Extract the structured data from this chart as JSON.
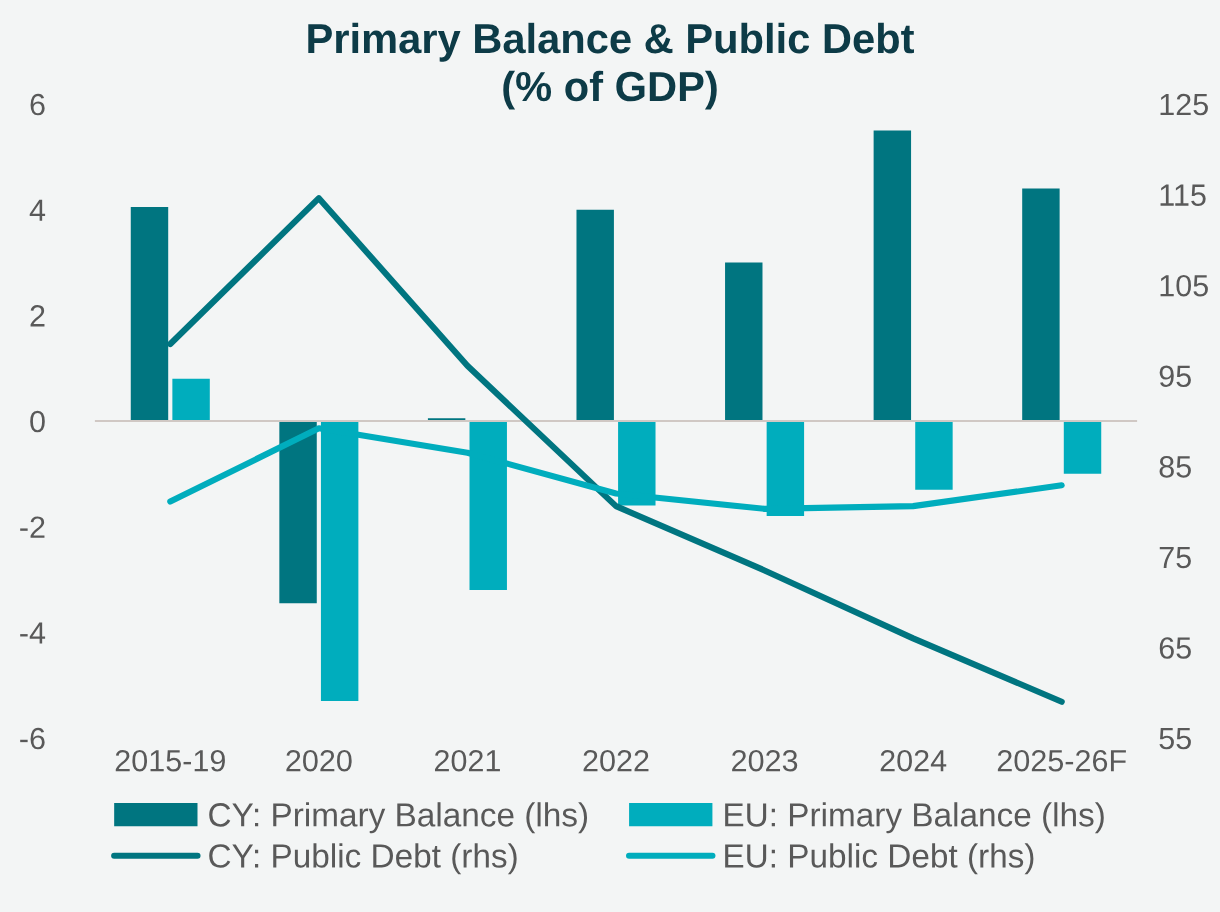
{
  "chart_data": {
    "type": "bar",
    "title": "Primary Balance & Public Debt\n(% of GDP)",
    "categories": [
      "2015-19",
      "2020",
      "2021",
      "2022",
      "2023",
      "2024",
      "2025-26F"
    ],
    "series": [
      {
        "name": "CY: Primary Balance (lhs)",
        "color": "#007580",
        "values": [
          4.05,
          -3.45,
          0.05,
          4.0,
          3.0,
          5.5,
          4.4
        ]
      },
      {
        "name": "EU: Primary Balance (lhs)",
        "color": "#00adbd",
        "values": [
          0.8,
          -5.3,
          -3.2,
          -1.6,
          -1.8,
          -1.3,
          -1.0
        ]
      },
      {
        "name": "CY: Public Debt (rhs)",
        "type": "line",
        "axis": "y2",
        "color": "#007580",
        "values": [
          98.5,
          114.6,
          96.1,
          80.6,
          73.5,
          66.0,
          59.0
        ]
      },
      {
        "name": "EU: Public Debt (rhs)",
        "type": "line",
        "axis": "y2",
        "color": "#00adbd",
        "values": [
          81.1,
          89.2,
          86.5,
          82.0,
          80.3,
          80.6,
          82.9
        ]
      }
    ],
    "ylim": [
      -6,
      6
    ],
    "yticks": [
      -6,
      -4,
      -2,
      0,
      2,
      4,
      6
    ],
    "y2lim": [
      55,
      125
    ],
    "y2ticks": [
      55,
      65,
      75,
      85,
      95,
      105,
      115,
      125
    ],
    "legend": "bottom",
    "marker": "none",
    "line_style": "solid"
  }
}
